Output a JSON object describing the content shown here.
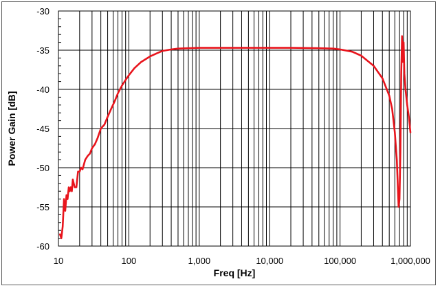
{
  "chart_data": {
    "type": "line",
    "title": "",
    "xlabel": "Freq [Hz]",
    "ylabel": "Power Gain [dB]",
    "x_scale": "log",
    "xlim": [
      10,
      1000000
    ],
    "ylim": [
      -60,
      -30
    ],
    "grid": true,
    "legend": "none",
    "x_tick_values": [
      10,
      100,
      1000,
      10000,
      100000,
      1000000
    ],
    "x_tick_labels": [
      "10",
      "100",
      "1,000",
      "10,000",
      "100,000",
      "1,000,000"
    ],
    "y_tick_values": [
      -30,
      -35,
      -40,
      -45,
      -50,
      -55,
      -60
    ],
    "y_tick_labels": [
      "-30",
      "-35",
      "-40",
      "-45",
      "-50",
      "-55",
      "-60"
    ],
    "series": [
      {
        "color": "#e8141c",
        "x": [
          10.5,
          11,
          11.5,
          12,
          12.5,
          13,
          13.5,
          14,
          14.5,
          15,
          15.5,
          16,
          17,
          18,
          19,
          20,
          21,
          22,
          24,
          26,
          28,
          30,
          33,
          36,
          40,
          45,
          50,
          56,
          63,
          70,
          80,
          90,
          100,
          120,
          150,
          200,
          250,
          300,
          400,
          500,
          700,
          1000,
          2000,
          5000,
          10000,
          20000,
          50000,
          80000,
          100000,
          150000,
          200000,
          300000,
          400000,
          500000,
          550000,
          600000,
          640000,
          660000,
          680000,
          700000,
          720000,
          740000,
          760000,
          780000,
          800000,
          820000,
          850000,
          900000,
          950000,
          1000000
        ],
        "y": [
          -58.5,
          -59,
          -57.5,
          -54,
          -55.5,
          -53.5,
          -54,
          -52.5,
          -53,
          -52.5,
          -53,
          -51.5,
          -52.5,
          -52.5,
          -50.5,
          -50.5,
          -50,
          -50.2,
          -49,
          -48.5,
          -48.2,
          -47.5,
          -47,
          -46.2,
          -45,
          -44.5,
          -43.5,
          -42.5,
          -41.5,
          -40.5,
          -39.5,
          -38.8,
          -38.2,
          -37.3,
          -36.5,
          -35.8,
          -35.4,
          -35.1,
          -34.9,
          -34.8,
          -34.75,
          -34.7,
          -34.7,
          -34.7,
          -34.7,
          -34.7,
          -34.75,
          -34.8,
          -34.9,
          -35.2,
          -35.7,
          -37.0,
          -38.6,
          -40.8,
          -42.5,
          -45.5,
          -49,
          -52,
          -55,
          -54,
          -48,
          -38,
          -33.2,
          -36.5,
          -34,
          -38,
          -40,
          -42,
          -43.5,
          -45.5
        ]
      }
    ]
  }
}
